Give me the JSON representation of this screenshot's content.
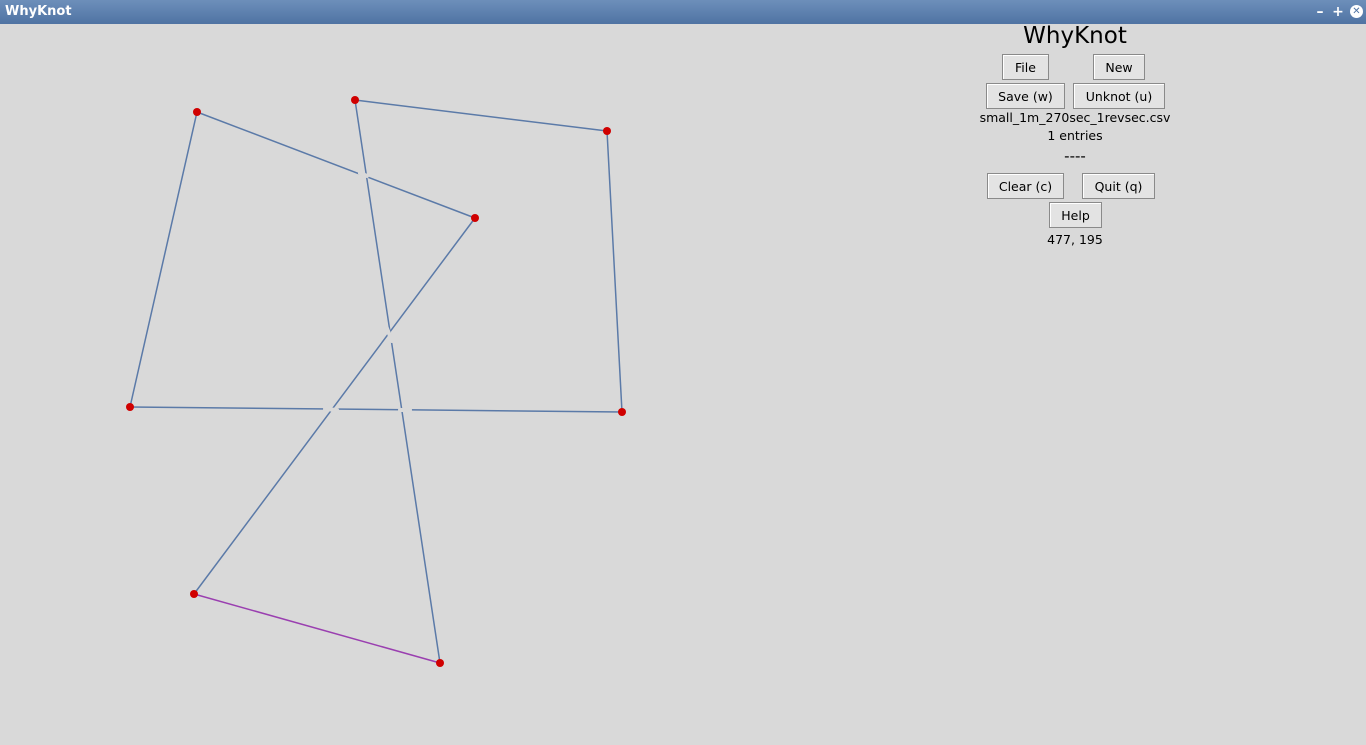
{
  "window": {
    "title": "WhyKnot"
  },
  "panel": {
    "app_title": "WhyKnot",
    "buttons": {
      "file": "File",
      "new": "New",
      "save": "Save (w)",
      "unknot": "Unknot (u)",
      "clear": "Clear (c)",
      "quit": "Quit (q)",
      "help": "Help"
    },
    "filename": "small_1m_270sec_1revsec.csv",
    "entries": "1 entries",
    "separator": "----",
    "coords": "477, 195"
  },
  "colors": {
    "edge": "#5b7aa8",
    "last_edge": "#9a3fb0",
    "vertex": "#d00000",
    "background": "#d9d9d9"
  }
}
